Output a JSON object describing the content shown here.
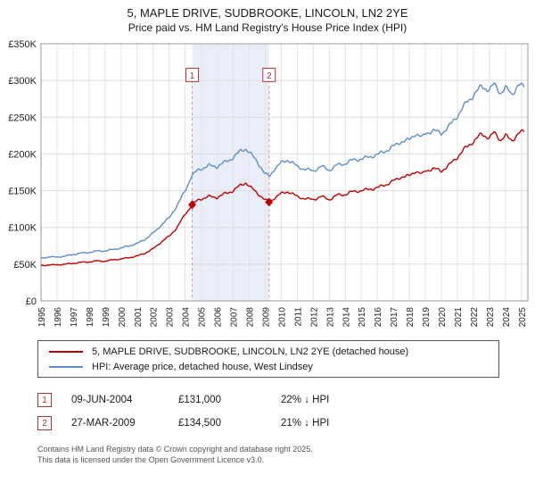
{
  "header": {
    "title": "5, MAPLE DRIVE, SUDBROOKE, LINCOLN, LN2 2YE",
    "subtitle": "Price paid vs. HM Land Registry's House Price Index (HPI)"
  },
  "chart_data": {
    "type": "line",
    "x_range": [
      1995,
      2025.4
    ],
    "ylim": [
      0,
      350000
    ],
    "y_step": 50000,
    "y_ticks": [
      "£0",
      "£50K",
      "£100K",
      "£150K",
      "£200K",
      "£250K",
      "£300K",
      "£350K"
    ],
    "x_ticks": [
      1995,
      1996,
      1997,
      1998,
      1999,
      2000,
      2001,
      2002,
      2003,
      2004,
      2005,
      2006,
      2007,
      2008,
      2009,
      2010,
      2011,
      2012,
      2013,
      2014,
      2015,
      2016,
      2017,
      2018,
      2019,
      2020,
      2021,
      2022,
      2023,
      2024,
      2025
    ],
    "grid": true,
    "legend_position": "bottom",
    "shade": [
      2004.44,
      2009.24
    ],
    "shade_color": "#e9eef8",
    "series": [
      {
        "name": "5, MAPLE DRIVE, SUDBROOKE, LINCOLN, LN2 2YE (detached house)",
        "color": "#c00000",
        "points": [
          [
            1995,
            48000
          ],
          [
            1995.5,
            49000
          ],
          [
            1996,
            49000
          ],
          [
            1996.5,
            50000
          ],
          [
            1997,
            51000
          ],
          [
            1997.5,
            52500
          ],
          [
            1998,
            53000
          ],
          [
            1998.5,
            54500
          ],
          [
            1999,
            54000
          ],
          [
            1999.5,
            56000
          ],
          [
            2000,
            57000
          ],
          [
            2000.5,
            59000
          ],
          [
            2001,
            61000
          ],
          [
            2001.5,
            65000
          ],
          [
            2002,
            71000
          ],
          [
            2002.5,
            80000
          ],
          [
            2003,
            88000
          ],
          [
            2003.5,
            100000
          ],
          [
            2004,
            118000
          ],
          [
            2004.44,
            131000
          ],
          [
            2004.8,
            137000
          ],
          [
            2005,
            139000
          ],
          [
            2005.5,
            142000
          ],
          [
            2006,
            141000
          ],
          [
            2006.5,
            146000
          ],
          [
            2007,
            150000
          ],
          [
            2007.5,
            158000
          ],
          [
            2007.8,
            161000
          ],
          [
            2008,
            156000
          ],
          [
            2008.5,
            147000
          ],
          [
            2009,
            137000
          ],
          [
            2009.24,
            134500
          ],
          [
            2009.5,
            139000
          ],
          [
            2010,
            146000
          ],
          [
            2010.4,
            149000
          ],
          [
            2011,
            142000
          ],
          [
            2011.5,
            139000
          ],
          [
            2012,
            138000
          ],
          [
            2012.5,
            142000
          ],
          [
            2013,
            138000
          ],
          [
            2013.5,
            144000
          ],
          [
            2014,
            145000
          ],
          [
            2014.5,
            149000
          ],
          [
            2015,
            150000
          ],
          [
            2015.5,
            152000
          ],
          [
            2016,
            154000
          ],
          [
            2016.5,
            158000
          ],
          [
            2017,
            163000
          ],
          [
            2017.5,
            169000
          ],
          [
            2018,
            170000
          ],
          [
            2018.4,
            177000
          ],
          [
            2018.8,
            172000
          ],
          [
            2019,
            177000
          ],
          [
            2019.5,
            180000
          ],
          [
            2020,
            177000
          ],
          [
            2020.5,
            185000
          ],
          [
            2021,
            196000
          ],
          [
            2021.5,
            208000
          ],
          [
            2022,
            217000
          ],
          [
            2022.5,
            227000
          ],
          [
            2023,
            222000
          ],
          [
            2023.3,
            229000
          ],
          [
            2023.7,
            219000
          ],
          [
            2024,
            225000
          ],
          [
            2024.4,
            218000
          ],
          [
            2024.8,
            228000
          ],
          [
            2025.2,
            231000
          ]
        ]
      },
      {
        "name": "HPI: Average price, detached house, West Lindsey",
        "color": "#5b8fc9",
        "points": [
          [
            1995,
            58000
          ],
          [
            1995.5,
            60000
          ],
          [
            1996,
            59500
          ],
          [
            1996.5,
            61000
          ],
          [
            1997,
            63000
          ],
          [
            1997.5,
            65000
          ],
          [
            1998,
            66000
          ],
          [
            1998.5,
            68000
          ],
          [
            1999,
            68000
          ],
          [
            1999.5,
            70000
          ],
          [
            2000,
            72000
          ],
          [
            2000.5,
            75000
          ],
          [
            2001,
            78000
          ],
          [
            2001.5,
            84000
          ],
          [
            2002,
            92000
          ],
          [
            2002.5,
            103000
          ],
          [
            2003,
            113000
          ],
          [
            2003.5,
            130000
          ],
          [
            2004,
            150000
          ],
          [
            2004.4,
            170000
          ],
          [
            2004.8,
            178000
          ],
          [
            2005,
            180000
          ],
          [
            2005.5,
            184000
          ],
          [
            2006,
            183000
          ],
          [
            2006.5,
            189000
          ],
          [
            2007,
            195000
          ],
          [
            2007.5,
            205000
          ],
          [
            2007.8,
            207000
          ],
          [
            2008,
            202000
          ],
          [
            2008.5,
            190000
          ],
          [
            2009,
            172000
          ],
          [
            2009.3,
            170000
          ],
          [
            2009.5,
            178000
          ],
          [
            2010,
            188000
          ],
          [
            2010.4,
            192000
          ],
          [
            2011,
            183000
          ],
          [
            2011.5,
            179000
          ],
          [
            2012,
            177000
          ],
          [
            2012.5,
            183000
          ],
          [
            2013,
            178000
          ],
          [
            2013.5,
            185000
          ],
          [
            2014,
            187000
          ],
          [
            2014.5,
            192000
          ],
          [
            2015,
            193000
          ],
          [
            2015.5,
            196000
          ],
          [
            2016,
            199000
          ],
          [
            2016.5,
            204000
          ],
          [
            2017,
            210000
          ],
          [
            2017.5,
            217000
          ],
          [
            2018,
            219000
          ],
          [
            2018.4,
            228000
          ],
          [
            2018.8,
            222000
          ],
          [
            2019,
            228000
          ],
          [
            2019.5,
            232000
          ],
          [
            2020,
            228000
          ],
          [
            2020.5,
            238000
          ],
          [
            2021,
            252000
          ],
          [
            2021.5,
            268000
          ],
          [
            2022,
            280000
          ],
          [
            2022.5,
            292000
          ],
          [
            2023,
            287000
          ],
          [
            2023.3,
            295000
          ],
          [
            2023.7,
            283000
          ],
          [
            2024,
            290000
          ],
          [
            2024.4,
            281000
          ],
          [
            2024.8,
            294000
          ],
          [
            2025.2,
            291000
          ]
        ]
      }
    ],
    "markers": [
      {
        "label": "1",
        "x": 2004.44,
        "y": 131000
      },
      {
        "label": "2",
        "x": 2009.24,
        "y": 134500
      }
    ]
  },
  "legend": [
    {
      "label": "5, MAPLE DRIVE, SUDBROOKE, LINCOLN, LN2 2YE (detached house)",
      "color": "#c00000"
    },
    {
      "label": "HPI: Average price, detached house, West Lindsey",
      "color": "#5b8fc9"
    }
  ],
  "transactions": [
    {
      "num": "1",
      "date": "09-JUN-2004",
      "price": "£131,000",
      "hpi": "22% ↓ HPI"
    },
    {
      "num": "2",
      "date": "27-MAR-2009",
      "price": "£134,500",
      "hpi": "21% ↓ HPI"
    }
  ],
  "footer": {
    "line1": "Contains HM Land Registry data © Crown copyright and database right 2025.",
    "line2": "This data is licensed under the Open Government Licence v3.0."
  }
}
